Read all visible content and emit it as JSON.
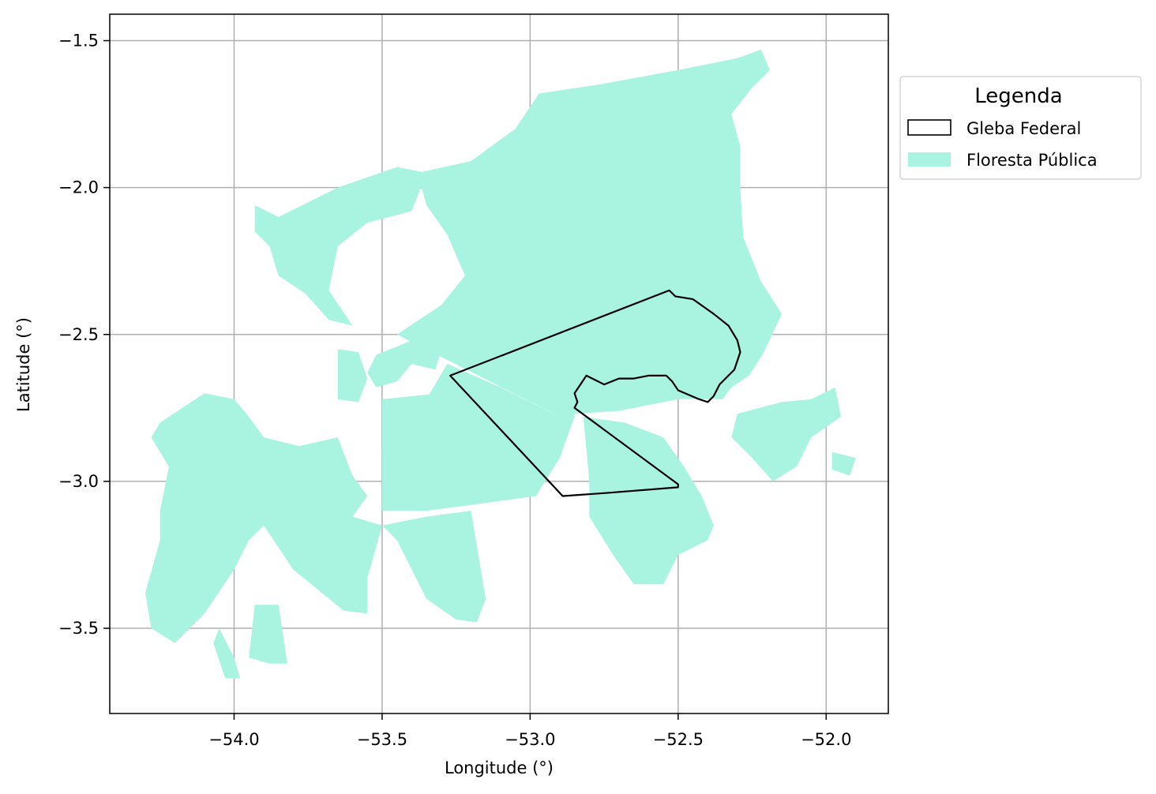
{
  "chart_data": {
    "type": "map",
    "xlabel": "Longitude (°)",
    "ylabel": "Latitude (°)",
    "xlim": [
      -54.42,
      -51.79
    ],
    "ylim": [
      -3.79,
      -1.41
    ],
    "xticks": [
      -54.0,
      -53.5,
      -53.0,
      -52.5,
      -52.0
    ],
    "xtick_labels": [
      "−54.0",
      "−53.5",
      "−53.0",
      "−52.5",
      "−52.0"
    ],
    "yticks": [
      -1.5,
      -2.0,
      -2.5,
      -3.0,
      -3.5
    ],
    "ytick_labels": [
      "−1.5",
      "−2.0",
      "−2.5",
      "−3.0",
      "−3.5"
    ],
    "grid": true,
    "legend": {
      "title": "Legenda",
      "placement": "outside-top-right",
      "entries": [
        {
          "label": "Gleba Federal",
          "style": "outline",
          "color": "#000000"
        },
        {
          "label": "Floresta Pública",
          "style": "fill",
          "color": "#a8f4e0"
        }
      ]
    },
    "layers": [
      {
        "name": "Floresta Pública",
        "color": "#a8f4e0",
        "polygons": [
          [
            [
              -53.45,
              -2.5
            ],
            [
              -53.3,
              -2.4
            ],
            [
              -53.22,
              -2.3
            ],
            [
              -53.28,
              -2.16
            ],
            [
              -53.35,
              -2.06
            ],
            [
              -53.38,
              -1.95
            ],
            [
              -53.2,
              -1.91
            ],
            [
              -53.05,
              -1.8
            ],
            [
              -52.97,
              -1.68
            ],
            [
              -52.77,
              -1.65
            ],
            [
              -52.5,
              -1.6
            ],
            [
              -52.3,
              -1.56
            ],
            [
              -52.22,
              -1.53
            ],
            [
              -52.19,
              -1.6
            ],
            [
              -52.25,
              -1.66
            ],
            [
              -52.32,
              -1.75
            ],
            [
              -52.29,
              -1.86
            ],
            [
              -52.29,
              -2.0
            ],
            [
              -52.28,
              -2.17
            ],
            [
              -52.22,
              -2.32
            ],
            [
              -52.15,
              -2.43
            ],
            [
              -52.21,
              -2.56
            ],
            [
              -52.26,
              -2.64
            ],
            [
              -52.32,
              -2.68
            ],
            [
              -52.35,
              -2.72
            ],
            [
              -52.5,
              -2.72
            ],
            [
              -52.7,
              -2.76
            ],
            [
              -52.85,
              -2.77
            ],
            [
              -52.85,
              -2.78
            ],
            [
              -52.9,
              -2.78
            ]
          ],
          [
            [
              -53.28,
              -2.6
            ],
            [
              -53.1,
              -2.68
            ],
            [
              -52.9,
              -2.78
            ],
            [
              -52.85,
              -2.78
            ],
            [
              -52.9,
              -2.92
            ],
            [
              -52.95,
              -3.0
            ],
            [
              -52.98,
              -3.05
            ],
            [
              -53.2,
              -3.08
            ],
            [
              -53.35,
              -3.1
            ],
            [
              -53.5,
              -3.1
            ],
            [
              -53.5,
              -2.9
            ],
            [
              -53.42,
              -2.78
            ],
            [
              -53.35,
              -2.72
            ]
          ],
          [
            [
              -53.5,
              -2.72
            ],
            [
              -53.3,
              -2.7
            ],
            [
              -53.2,
              -2.68
            ],
            [
              -53.15,
              -2.75
            ],
            [
              -53.2,
              -2.9
            ],
            [
              -53.5,
              -3.1
            ]
          ],
          [
            [
              -53.52,
              -2.57
            ],
            [
              -53.4,
              -2.52
            ],
            [
              -53.3,
              -2.55
            ],
            [
              -53.32,
              -2.62
            ],
            [
              -53.4,
              -2.6
            ],
            [
              -53.45,
              -2.66
            ],
            [
              -53.52,
              -2.68
            ],
            [
              -53.55,
              -2.63
            ]
          ],
          [
            [
              -53.65,
              -2.55
            ],
            [
              -53.58,
              -2.56
            ],
            [
              -53.55,
              -2.65
            ],
            [
              -53.58,
              -2.73
            ],
            [
              -53.65,
              -2.72
            ]
          ],
          [
            [
              -54.25,
              -2.8
            ],
            [
              -54.1,
              -2.7
            ],
            [
              -54.0,
              -2.72
            ],
            [
              -53.95,
              -2.78
            ],
            [
              -53.9,
              -2.85
            ],
            [
              -53.78,
              -2.88
            ],
            [
              -53.65,
              -2.85
            ],
            [
              -53.6,
              -2.98
            ],
            [
              -53.55,
              -3.05
            ],
            [
              -53.6,
              -3.12
            ],
            [
              -53.5,
              -3.15
            ],
            [
              -53.45,
              -3.2
            ],
            [
              -53.35,
              -3.4
            ],
            [
              -53.25,
              -3.47
            ],
            [
              -53.18,
              -3.48
            ],
            [
              -53.15,
              -3.4
            ],
            [
              -53.2,
              -3.1
            ],
            [
              -53.35,
              -3.12
            ],
            [
              -53.5,
              -3.15
            ],
            [
              -53.55,
              -3.33
            ],
            [
              -53.55,
              -3.45
            ],
            [
              -53.63,
              -3.44
            ],
            [
              -53.8,
              -3.3
            ],
            [
              -53.9,
              -3.15
            ],
            [
              -53.95,
              -3.2
            ],
            [
              -54.0,
              -3.3
            ],
            [
              -54.1,
              -3.45
            ],
            [
              -54.2,
              -3.55
            ],
            [
              -54.28,
              -3.5
            ],
            [
              -54.3,
              -3.38
            ],
            [
              -54.25,
              -3.2
            ],
            [
              -54.25,
              -3.1
            ],
            [
              -54.22,
              -2.95
            ],
            [
              -54.28,
              -2.85
            ]
          ],
          [
            [
              -53.95,
              -3.6
            ],
            [
              -53.88,
              -3.62
            ],
            [
              -53.82,
              -3.62
            ],
            [
              -53.85,
              -3.42
            ],
            [
              -53.93,
              -3.42
            ]
          ],
          [
            [
              -54.05,
              -3.5
            ],
            [
              -54.0,
              -3.6
            ],
            [
              -53.98,
              -3.67
            ],
            [
              -54.03,
              -3.67
            ],
            [
              -54.07,
              -3.55
            ]
          ],
          [
            [
              -53.85,
              -2.1
            ],
            [
              -53.65,
              -2.0
            ],
            [
              -53.45,
              -1.93
            ],
            [
              -53.35,
              -1.95
            ],
            [
              -53.4,
              -2.08
            ],
            [
              -53.55,
              -2.12
            ],
            [
              -53.65,
              -2.2
            ],
            [
              -53.68,
              -2.35
            ],
            [
              -53.6,
              -2.47
            ],
            [
              -53.68,
              -2.45
            ],
            [
              -53.76,
              -2.36
            ],
            [
              -53.85,
              -2.3
            ],
            [
              -53.88,
              -2.2
            ],
            [
              -53.93,
              -2.15
            ],
            [
              -53.93,
              -2.06
            ]
          ],
          [
            [
              -52.82,
              -2.78
            ],
            [
              -52.68,
              -2.8
            ],
            [
              -52.55,
              -2.85
            ],
            [
              -52.48,
              -2.95
            ],
            [
              -52.42,
              -3.05
            ],
            [
              -52.38,
              -3.15
            ],
            [
              -52.4,
              -3.2
            ],
            [
              -52.5,
              -3.25
            ],
            [
              -52.55,
              -3.35
            ],
            [
              -52.65,
              -3.35
            ],
            [
              -52.72,
              -3.25
            ],
            [
              -52.8,
              -3.12
            ],
            [
              -52.8,
              -3.0
            ]
          ],
          [
            [
              -52.3,
              -2.77
            ],
            [
              -52.15,
              -2.73
            ],
            [
              -52.05,
              -2.72
            ],
            [
              -51.97,
              -2.68
            ],
            [
              -51.95,
              -2.78
            ],
            [
              -52.05,
              -2.85
            ],
            [
              -52.1,
              -2.95
            ],
            [
              -52.18,
              -3.0
            ],
            [
              -52.25,
              -2.92
            ],
            [
              -52.32,
              -2.85
            ]
          ],
          [
            [
              -51.98,
              -2.9
            ],
            [
              -51.9,
              -2.92
            ],
            [
              -51.92,
              -2.98
            ],
            [
              -51.98,
              -2.96
            ]
          ],
          [
            [
              -52.85,
              -2.64
            ],
            [
              -52.8,
              -2.64
            ],
            [
              -52.78,
              -2.68
            ],
            [
              -52.84,
              -2.68
            ]
          ]
        ]
      },
      {
        "name": "Gleba Federal",
        "color": "#000000",
        "polygons": [
          [
            [
              -53.27,
              -2.64
            ],
            [
              -52.53,
              -2.35
            ],
            [
              -52.51,
              -2.37
            ],
            [
              -52.45,
              -2.38
            ],
            [
              -52.38,
              -2.43
            ],
            [
              -52.33,
              -2.47
            ],
            [
              -52.3,
              -2.52
            ],
            [
              -52.29,
              -2.56
            ],
            [
              -52.31,
              -2.62
            ],
            [
              -52.36,
              -2.67
            ],
            [
              -52.38,
              -2.71
            ],
            [
              -52.4,
              -2.73
            ],
            [
              -52.43,
              -2.72
            ],
            [
              -52.5,
              -2.69
            ],
            [
              -52.52,
              -2.66
            ],
            [
              -52.54,
              -2.64
            ],
            [
              -52.6,
              -2.64
            ],
            [
              -52.65,
              -2.65
            ],
            [
              -52.7,
              -2.65
            ],
            [
              -52.75,
              -2.67
            ],
            [
              -52.79,
              -2.65
            ],
            [
              -52.81,
              -2.64
            ],
            [
              -52.83,
              -2.67
            ],
            [
              -52.85,
              -2.7
            ],
            [
              -52.84,
              -2.73
            ],
            [
              -52.85,
              -2.75
            ],
            [
              -52.5,
              -3.01
            ],
            [
              -52.5,
              -3.02
            ],
            [
              -52.75,
              -3.04
            ],
            [
              -52.89,
              -3.05
            ]
          ]
        ]
      }
    ]
  }
}
